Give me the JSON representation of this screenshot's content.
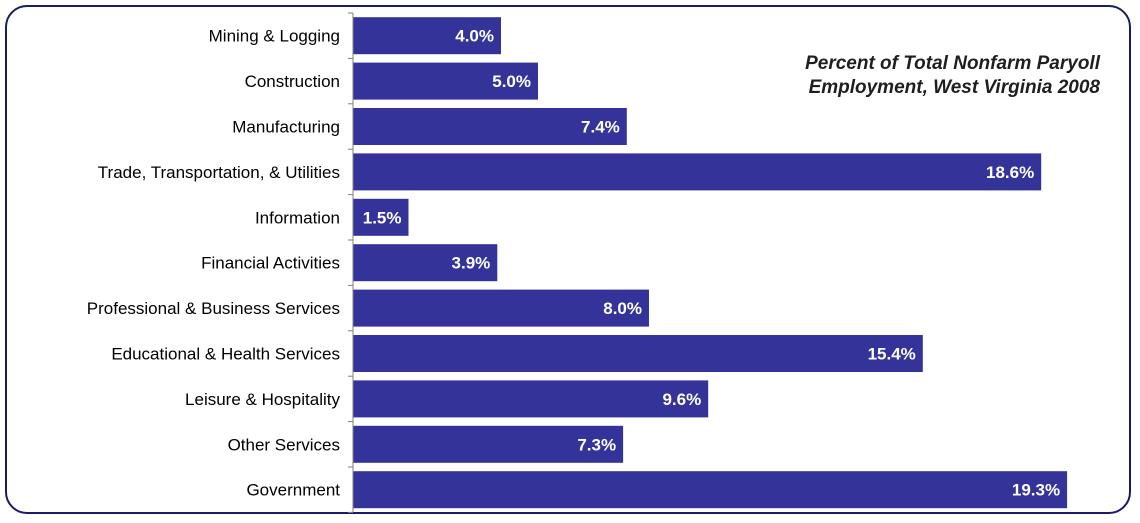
{
  "chart_data": {
    "type": "bar",
    "orientation": "horizontal",
    "title_line1": "Percent of Total Nonfarm Paryoll",
    "title_line2": "Employment, West Virginia 2008",
    "categories": [
      "Mining & Logging",
      "Construction",
      "Manufacturing",
      "Trade, Transportation, & Utilities",
      "Information",
      "Financial Activities",
      "Professional & Business Services",
      "Educational & Health Services",
      "Leisure & Hospitality",
      "Other Services",
      "Government"
    ],
    "values": [
      4.0,
      5.0,
      7.4,
      18.6,
      1.5,
      3.9,
      8.0,
      15.4,
      9.6,
      7.3,
      19.3
    ],
    "data_labels": [
      "4.0%",
      "5.0%",
      "7.4%",
      "18.6%",
      "1.5%",
      "3.9%",
      "8.0%",
      "15.4%",
      "9.6%",
      "7.3%",
      "19.3%"
    ],
    "xlim": [
      0,
      20
    ],
    "grid": false,
    "legend": "none",
    "bar_color": "#333399",
    "label_color": "#ffffff"
  }
}
